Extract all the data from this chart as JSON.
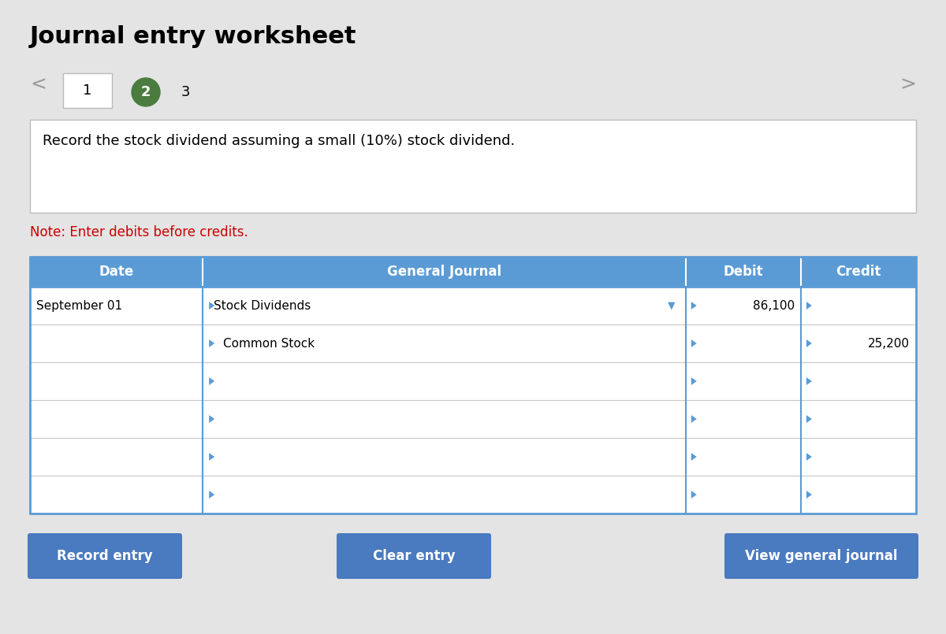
{
  "title": "Journal entry worksheet",
  "bg_color": "#e4e4e4",
  "white": "#ffffff",
  "tab1_label": "1",
  "tab2_label": "2",
  "tab3_label": "3",
  "tab2_color": "#4a7c3f",
  "instruction_text": "Record the stock dividend assuming a small (10%) stock dividend.",
  "note_text": "Note: Enter debits before credits.",
  "note_color": "#cc0000",
  "header_bg": "#5b9bd5",
  "header_text_color": "#ffffff",
  "col_headers": [
    "Date",
    "General Journal",
    "Debit",
    "Credit"
  ],
  "row_data": [
    [
      "September 01",
      "Stock Dividends",
      "86,100",
      ""
    ],
    [
      "",
      "Common Stock",
      "",
      "25,200"
    ],
    [
      "",
      "",
      "",
      ""
    ],
    [
      "",
      "",
      "",
      ""
    ],
    [
      "",
      "",
      "",
      ""
    ],
    [
      "",
      "",
      "",
      ""
    ]
  ],
  "btn_color": "#4a7abf",
  "btn_text_color": "#ffffff",
  "btn_labels": [
    "Record entry",
    "Clear entry",
    "View general journal"
  ],
  "border_color": "#5b9bd5",
  "nav_arrow_color": "#999999",
  "fig_w": 12.0,
  "fig_h": 8.05
}
